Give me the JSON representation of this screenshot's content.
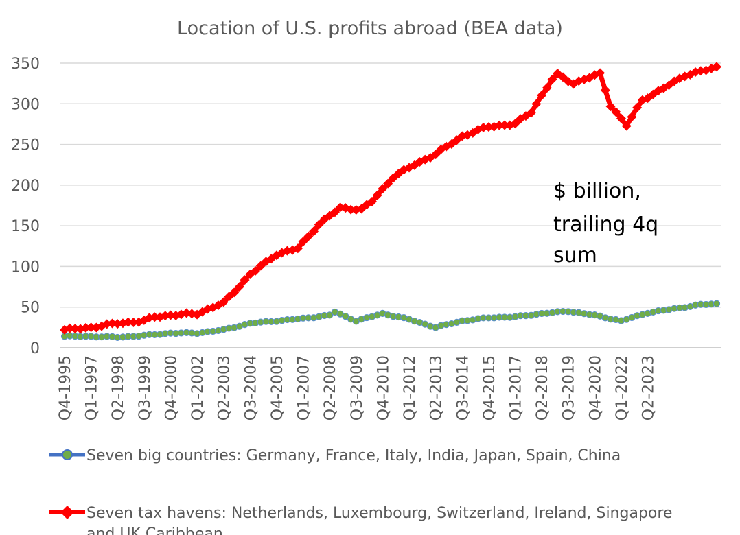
{
  "chart_data": {
    "type": "line",
    "title": "Location of U.S. profits abroad (BEA data)",
    "annotation": [
      "$ billion,",
      "trailing 4q",
      "sum"
    ],
    "xlabel": "",
    "ylabel": "",
    "ylim": [
      0,
      350
    ],
    "yticks": [
      0,
      50,
      100,
      150,
      200,
      250,
      300,
      350
    ],
    "x_tick_labels": [
      "Q4-1995",
      "Q1-1997",
      "Q2-1998",
      "Q3-1999",
      "Q4-2000",
      "Q1-2002",
      "Q2-2003",
      "Q3-2004",
      "Q4-2005",
      "Q1-2007",
      "Q2-2008",
      "Q3-2009",
      "Q4-2010",
      "Q1-2012",
      "Q2-2013",
      "Q3-2014",
      "Q4-2015",
      "Q1-2017",
      "Q2-2018",
      "Q3-2019",
      "Q4-2020",
      "Q1-2022",
      "Q2-2023"
    ],
    "grid": true,
    "legend_position": "bottom",
    "series": [
      {
        "name": "Seven big countries: Germany, France, Italy, India, Japan, Spain, China",
        "color": "#4472C4",
        "marker_color": "#70AD47",
        "marker": "circle",
        "keypoints": [
          [
            0,
            14
          ],
          [
            5,
            14
          ],
          [
            10,
            13
          ],
          [
            15,
            15
          ],
          [
            20,
            18
          ],
          [
            25,
            18
          ],
          [
            30,
            22
          ],
          [
            35,
            30
          ],
          [
            40,
            33
          ],
          [
            45,
            36
          ],
          [
            50,
            40
          ],
          [
            51,
            44
          ],
          [
            55,
            33
          ],
          [
            60,
            42
          ],
          [
            65,
            35
          ],
          [
            70,
            25
          ],
          [
            75,
            33
          ],
          [
            80,
            37
          ],
          [
            85,
            38
          ],
          [
            90,
            42
          ],
          [
            95,
            45
          ],
          [
            100,
            40
          ],
          [
            105,
            33
          ],
          [
            110,
            43
          ],
          [
            115,
            48
          ],
          [
            120,
            53
          ],
          [
            123,
            54
          ]
        ]
      },
      {
        "name": "Seven tax havens: Netherlands, Luxembourg, Switzerland, Ireland, Singapore and UK Caribbean",
        "color": "#FF0000",
        "marker_color": "#FF0000",
        "marker": "diamond",
        "keypoints": [
          [
            0,
            22
          ],
          [
            5,
            25
          ],
          [
            10,
            30
          ],
          [
            15,
            33
          ],
          [
            17,
            38
          ],
          [
            20,
            40
          ],
          [
            25,
            42
          ],
          [
            30,
            55
          ],
          [
            35,
            90
          ],
          [
            40,
            115
          ],
          [
            44,
            122
          ],
          [
            48,
            152
          ],
          [
            52,
            172
          ],
          [
            56,
            170
          ],
          [
            58,
            180
          ],
          [
            62,
            210
          ],
          [
            66,
            225
          ],
          [
            70,
            238
          ],
          [
            75,
            260
          ],
          [
            80,
            272
          ],
          [
            85,
            275
          ],
          [
            88,
            290
          ],
          [
            92,
            330
          ],
          [
            93,
            336
          ],
          [
            96,
            325
          ],
          [
            101,
            337
          ],
          [
            103,
            298
          ],
          [
            106,
            273
          ],
          [
            109,
            305
          ],
          [
            112,
            315
          ],
          [
            117,
            335
          ],
          [
            119,
            338
          ],
          [
            123,
            345
          ]
        ]
      }
    ]
  }
}
